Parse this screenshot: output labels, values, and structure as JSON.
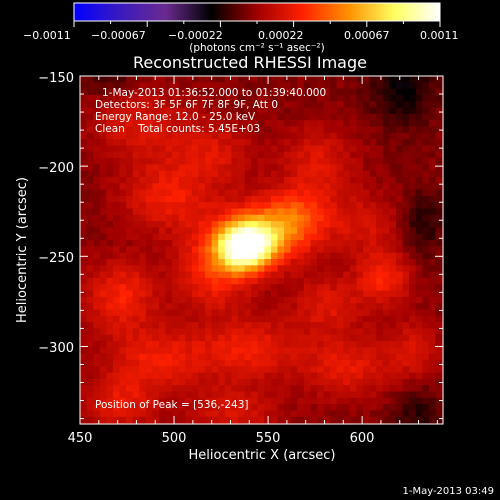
{
  "chart_data": {
    "type": "heatmap",
    "title": "Reconstructed RHESSI Image",
    "xlabel": "Heliocentric X (arcsec)",
    "ylabel": "Heliocentric Y (arcsec)",
    "xlim": [
      450,
      643
    ],
    "ylim": [
      -343,
      -150
    ],
    "x_ticks": [
      450,
      500,
      550,
      600
    ],
    "y_ticks": [
      -150,
      -200,
      -250,
      -300
    ],
    "x_tick_labels": [
      "450",
      "500",
      "550",
      "600"
    ],
    "y_tick_labels": [
      "−150",
      "−200",
      "−250",
      "−300"
    ],
    "colorbar": {
      "range": [
        -0.0011,
        0.0011
      ],
      "tick_labels": [
        "−0.0011",
        "−0.00067",
        "−0.00022",
        "0.00022",
        "0.00067",
        "0.0011"
      ],
      "units_label": "(photons cm⁻² s⁻¹ asec⁻²)",
      "colors": [
        "#0000ff",
        "#3a1ac0",
        "#6a2a8f",
        "#000000",
        "#a00000",
        "#ff2000",
        "#ff9000",
        "#ffff60",
        "#ffffff"
      ]
    },
    "info_lines": [
      "1-May-2013 01:36:52.000 to 01:39:40.000",
      "Detectors: 3F 5F 6F 7F 8F 9F, Att 0",
      "Energy Range: 12.0 - 25.0 keV",
      "Clean    Total counts: 5.45E+03"
    ],
    "peak_label": "Position of Peak = [536,-243]",
    "peak": [
      536,
      -243
    ],
    "sources": [
      {
        "x": 536,
        "y": -243,
        "amp": 0.00105,
        "sx": 10,
        "sy": 9
      },
      {
        "x": 548,
        "y": -235,
        "amp": 0.0005,
        "sx": 16,
        "sy": 12
      },
      {
        "x": 520,
        "y": -255,
        "amp": 0.00035,
        "sx": 14,
        "sy": 16
      },
      {
        "x": 565,
        "y": -225,
        "amp": 0.00028,
        "sx": 13,
        "sy": 12
      },
      {
        "x": 495,
        "y": -215,
        "amp": 0.00028,
        "sx": 18,
        "sy": 14
      },
      {
        "x": 480,
        "y": -175,
        "amp": 0.00022,
        "sx": 18,
        "sy": 14
      },
      {
        "x": 520,
        "y": -190,
        "amp": 0.0002,
        "sx": 15,
        "sy": 12
      },
      {
        "x": 575,
        "y": -195,
        "amp": 0.00022,
        "sx": 14,
        "sy": 14
      },
      {
        "x": 600,
        "y": -230,
        "amp": 0.0002,
        "sx": 14,
        "sy": 12
      },
      {
        "x": 610,
        "y": -260,
        "amp": 0.00032,
        "sx": 10,
        "sy": 10
      },
      {
        "x": 580,
        "y": -275,
        "amp": 0.00022,
        "sx": 14,
        "sy": 12
      },
      {
        "x": 470,
        "y": -270,
        "amp": 0.0003,
        "sx": 14,
        "sy": 14
      },
      {
        "x": 490,
        "y": -305,
        "amp": 0.00028,
        "sx": 20,
        "sy": 12
      },
      {
        "x": 540,
        "y": -300,
        "amp": 0.00028,
        "sx": 18,
        "sy": 12
      },
      {
        "x": 590,
        "y": -310,
        "amp": 0.00026,
        "sx": 16,
        "sy": 12
      },
      {
        "x": 625,
        "y": -300,
        "amp": 0.0002,
        "sx": 10,
        "sy": 12
      },
      {
        "x": 470,
        "y": -330,
        "amp": 0.00025,
        "sx": 14,
        "sy": 10
      },
      {
        "x": 530,
        "y": -335,
        "amp": 0.0002,
        "sx": 18,
        "sy": 10
      },
      {
        "x": 620,
        "y": -155,
        "amp": -0.00022,
        "sx": 12,
        "sy": 14
      },
      {
        "x": 630,
        "y": -230,
        "amp": -0.00018,
        "sx": 8,
        "sy": 12
      },
      {
        "x": 628,
        "y": -335,
        "amp": -0.00015,
        "sx": 10,
        "sy": 10
      },
      {
        "x": 465,
        "y": -150,
        "amp": -0.00012,
        "sx": 10,
        "sy": 8
      }
    ],
    "grid": false
  },
  "footer": {
    "timestamp": "1-May-2013 03:49"
  }
}
